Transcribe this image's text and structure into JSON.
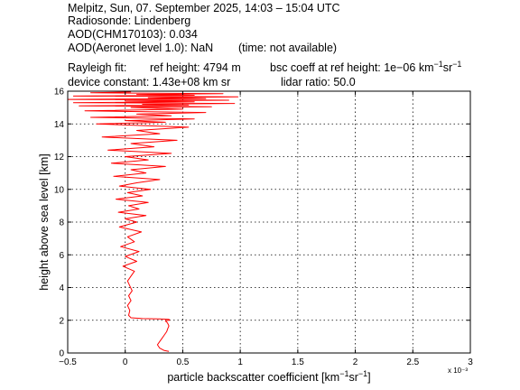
{
  "header": {
    "line1": "Melpitz, Sun, 07. September 2025, 14:03 – 15:04 UTC",
    "line2": "Radiosonde: Lindenberg",
    "line3": "AOD(CHM170103): 0.034",
    "line4a": "AOD(Aeronet level 1.0): NaN",
    "line4b": "(time: not available)",
    "line5a": "Rayleigh fit:",
    "line5b": "ref height: 4794 m",
    "line5c": "bsc coeff at ref height: 1e−06 km",
    "line5c_sup1": "−1",
    "line5c_mid": "sr",
    "line5c_sup2": "−1",
    "line6a": "device constant: 1.43e+08 km sr",
    "line6b": "lidar ratio: 50.0"
  },
  "chart_data": {
    "type": "line",
    "xlabel": "particle backscatter coefficient [km⁻¹sr⁻¹]",
    "xlabel_parts": {
      "base": "particle backscatter coefficient [km",
      "sup1": "−1",
      "mid": "sr",
      "sup2": "−1",
      "end": "]"
    },
    "ylabel": "height above sea level [km]",
    "x_exponent_label": "x 10⁻³",
    "xlim": [
      -0.5,
      3.0
    ],
    "ylim": [
      0,
      16
    ],
    "xticks": [
      -0.5,
      0,
      0.5,
      1,
      1.5,
      2,
      2.5,
      3
    ],
    "xtick_labels": [
      "−0.5",
      "0",
      "0.5",
      "1",
      "1.5",
      "2",
      "2.5",
      "3"
    ],
    "yticks": [
      0,
      2,
      4,
      6,
      8,
      10,
      12,
      14,
      16
    ],
    "ytick_labels": [
      "0",
      "2",
      "4",
      "6",
      "8",
      "10",
      "12",
      "14",
      "16"
    ],
    "grid": true,
    "line_color": "#ff0000",
    "series": [
      {
        "x": [
          0.38,
          0.34,
          0.3,
          0.28,
          0.3,
          0.32,
          0.34,
          0.36,
          0.37,
          0.38,
          0.37,
          0.36,
          0.35,
          0.35,
          0.36,
          0.37,
          0.38,
          0.385,
          0.38,
          0.3,
          0.15,
          0.05,
          0.03,
          0.04,
          0.02,
          0.05,
          0.03,
          0.06,
          0.04,
          0.02,
          0.05,
          0.08,
          -0.02,
          0.1,
          0.0,
          0.12,
          -0.04,
          0.08,
          0.02,
          0.14,
          -0.05,
          0.1,
          0.0,
          0.18,
          -0.06,
          0.12,
          0.03,
          0.2,
          -0.08,
          0.15,
          0.02,
          0.22,
          -0.05,
          0.1,
          0.3,
          -0.1,
          0.18,
          0.05,
          0.35,
          -0.12,
          0.2,
          0.0,
          0.4,
          -0.15,
          0.25,
          0.05,
          0.45,
          -0.2,
          0.3,
          0.1,
          0.55,
          -0.25,
          0.35,
          0.0,
          0.6,
          -0.3,
          0.4,
          0.1,
          0.7,
          -0.35,
          0.5,
          0.05,
          0.75,
          -0.4,
          0.55,
          0.15,
          0.95,
          -0.45,
          0.6,
          0.0,
          0.9,
          -0.5,
          0.7,
          0.2,
          0.98,
          -0.45,
          0.6,
          0.1,
          0.85,
          -0.3,
          0.05
        ],
        "y": [
          0.1,
          0.15,
          0.3,
          0.5,
          0.7,
          0.9,
          1.1,
          1.3,
          1.5,
          1.65,
          1.8,
          1.9,
          1.95,
          1.97,
          1.98,
          1.99,
          2.0,
          2.02,
          2.05,
          2.08,
          2.1,
          2.15,
          2.3,
          2.6,
          2.9,
          3.2,
          3.5,
          3.8,
          4.1,
          4.4,
          4.7,
          5.0,
          5.3,
          5.6,
          5.9,
          6.2,
          6.5,
          6.8,
          7.1,
          7.4,
          7.7,
          8.0,
          8.2,
          8.4,
          8.6,
          8.8,
          9.0,
          9.2,
          9.4,
          9.6,
          9.8,
          10.0,
          10.2,
          10.4,
          10.6,
          10.8,
          11.0,
          11.2,
          11.4,
          11.6,
          11.8,
          12.0,
          12.2,
          12.4,
          12.6,
          12.8,
          13.0,
          13.2,
          13.4,
          13.6,
          13.8,
          14.0,
          14.1,
          14.2,
          14.3,
          14.4,
          14.5,
          14.6,
          14.7,
          14.8,
          14.9,
          15.0,
          15.05,
          15.1,
          15.15,
          15.2,
          15.25,
          15.3,
          15.35,
          15.4,
          15.45,
          15.5,
          15.55,
          15.6,
          15.65,
          15.7,
          15.75,
          15.8,
          15.85,
          15.9,
          15.95
        ]
      }
    ]
  }
}
